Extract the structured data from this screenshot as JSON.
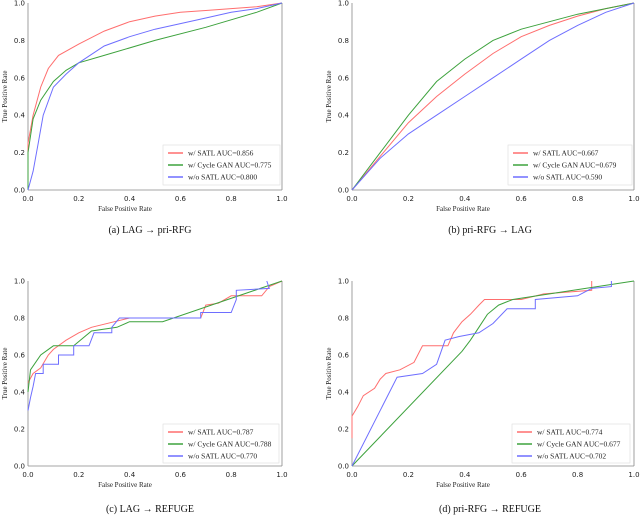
{
  "chart_data": [
    {
      "type": "line",
      "caption": "(a) LAG → pri-RFG",
      "xlabel": "False Positive Rate",
      "ylabel": "True Positive Rate",
      "xlim": [
        0,
        1
      ],
      "ylim": [
        0,
        1
      ],
      "xticks": [
        "0.0",
        "0.2",
        "0.4",
        "0.6",
        "0.8",
        "1.0"
      ],
      "yticks": [
        "0.0",
        "0.2",
        "0.4",
        "0.6",
        "0.8",
        "1.0"
      ],
      "grid": false,
      "legend_position": "lower-right",
      "series": [
        {
          "name": "w/ SATL AUC=0.856",
          "color": "#ff6e6e",
          "x": [
            0,
            0,
            0.02,
            0.05,
            0.08,
            0.12,
            0.2,
            0.3,
            0.4,
            0.5,
            0.6,
            0.7,
            0.8,
            0.9,
            1
          ],
          "y": [
            0,
            0.25,
            0.4,
            0.55,
            0.65,
            0.72,
            0.78,
            0.85,
            0.9,
            0.93,
            0.95,
            0.96,
            0.97,
            0.98,
            1
          ]
        },
        {
          "name": "w/ Cycle GAN AUC=0.775",
          "color": "#3da23d",
          "x": [
            0,
            0,
            0.02,
            0.05,
            0.1,
            0.15,
            0.2,
            0.3,
            0.5,
            0.7,
            0.9,
            1
          ],
          "y": [
            0,
            0.2,
            0.38,
            0.48,
            0.58,
            0.64,
            0.68,
            0.72,
            0.8,
            0.87,
            0.95,
            1
          ]
        },
        {
          "name": "w/o SATL AUC=0.800",
          "color": "#6e6eff",
          "x": [
            0,
            0.02,
            0.04,
            0.06,
            0.1,
            0.15,
            0.2,
            0.3,
            0.4,
            0.5,
            0.6,
            0.7,
            0.8,
            0.9,
            1
          ],
          "y": [
            0,
            0.1,
            0.25,
            0.4,
            0.55,
            0.62,
            0.68,
            0.77,
            0.82,
            0.86,
            0.89,
            0.92,
            0.95,
            0.97,
            1
          ]
        }
      ]
    },
    {
      "type": "line",
      "caption": "(b) pri-RFG → LAG",
      "xlabel": "False Positive Rate",
      "ylabel": "True Positive Rate",
      "xlim": [
        0,
        1
      ],
      "ylim": [
        0,
        1
      ],
      "xticks": [
        "0.0",
        "0.2",
        "0.4",
        "0.6",
        "0.8",
        "1.0"
      ],
      "yticks": [
        "0.0",
        "0.2",
        "0.4",
        "0.6",
        "0.8",
        "1.0"
      ],
      "grid": false,
      "legend_position": "lower-right",
      "series": [
        {
          "name": "w/ SATL AUC=0.667",
          "color": "#ff6e6e",
          "x": [
            0,
            0.1,
            0.2,
            0.3,
            0.4,
            0.5,
            0.6,
            0.7,
            0.8,
            0.9,
            1
          ],
          "y": [
            0,
            0.18,
            0.36,
            0.5,
            0.62,
            0.73,
            0.82,
            0.88,
            0.93,
            0.97,
            1
          ]
        },
        {
          "name": "w/ Cycle GAN AUC=0.679",
          "color": "#3da23d",
          "x": [
            0,
            0.1,
            0.2,
            0.3,
            0.4,
            0.5,
            0.6,
            0.7,
            0.8,
            0.9,
            1
          ],
          "y": [
            0,
            0.2,
            0.4,
            0.58,
            0.7,
            0.8,
            0.86,
            0.9,
            0.94,
            0.97,
            1
          ]
        },
        {
          "name": "w/o SATL AUC=0.590",
          "color": "#6e6eff",
          "x": [
            0,
            0.1,
            0.2,
            0.3,
            0.4,
            0.5,
            0.6,
            0.7,
            0.8,
            0.9,
            1
          ],
          "y": [
            0,
            0.17,
            0.3,
            0.4,
            0.5,
            0.6,
            0.7,
            0.8,
            0.88,
            0.95,
            1
          ]
        }
      ]
    },
    {
      "type": "line",
      "caption": "(c) LAG → REFUGE",
      "xlabel": "False Positive Rate",
      "ylabel": "True Positive Rate",
      "xlim": [
        0,
        1
      ],
      "ylim": [
        0,
        1
      ],
      "xticks": [
        "0.0",
        "0.2",
        "0.4",
        "0.6",
        "0.8",
        "1.0"
      ],
      "yticks": [
        "0.0",
        "0.2",
        "0.4",
        "0.6",
        "0.8",
        "1.0"
      ],
      "grid": false,
      "legend_position": "lower-right",
      "series": [
        {
          "name": "w/ SATL AUC=0.787",
          "color": "#ff6e6e",
          "x": [
            0,
            0.02,
            0.05,
            0.08,
            0.1,
            0.15,
            0.2,
            0.25,
            0.4,
            0.68,
            0.7,
            0.75,
            0.8,
            0.92,
            0.95,
            1
          ],
          "y": [
            0.45,
            0.5,
            0.53,
            0.6,
            0.63,
            0.68,
            0.72,
            0.75,
            0.8,
            0.8,
            0.87,
            0.88,
            0.92,
            0.92,
            0.97,
            1
          ]
        },
        {
          "name": "w/ Cycle GAN AUC=0.788",
          "color": "#3da23d",
          "x": [
            0,
            0.01,
            0.05,
            0.1,
            0.18,
            0.25,
            0.35,
            0.4,
            0.53,
            1
          ],
          "y": [
            0.4,
            0.52,
            0.6,
            0.65,
            0.65,
            0.73,
            0.75,
            0.78,
            0.78,
            1
          ]
        },
        {
          "name": "w/o SATL AUC=0.770",
          "color": "#6e6eff",
          "x": [
            0,
            0.01,
            0.02,
            0.03,
            0.06,
            0.06,
            0.12,
            0.12,
            0.18,
            0.18,
            0.24,
            0.26,
            0.33,
            0.33,
            0.36,
            0.68,
            0.68,
            0.8,
            0.82,
            0.82,
            0.95,
            0.94
          ],
          "y": [
            0.3,
            0.37,
            0.43,
            0.5,
            0.5,
            0.55,
            0.55,
            0.6,
            0.6,
            0.65,
            0.65,
            0.72,
            0.72,
            0.75,
            0.8,
            0.8,
            0.83,
            0.83,
            0.9,
            0.95,
            0.96,
            1
          ]
        }
      ]
    },
    {
      "type": "line",
      "caption": "(d) pri-RFG → REFUGE",
      "xlabel": "False Positive Rate",
      "ylabel": "True Positive Rate",
      "xlim": [
        0,
        1
      ],
      "ylim": [
        0,
        1
      ],
      "xticks": [
        "0.0",
        "0.2",
        "0.4",
        "0.6",
        "0.8",
        "1.0"
      ],
      "yticks": [
        "0.0",
        "0.2",
        "0.4",
        "0.6",
        "0.8",
        "1.0"
      ],
      "grid": false,
      "legend_position": "lower-right",
      "series": [
        {
          "name": "w/ SATL AUC=0.774",
          "color": "#ff6e6e",
          "x": [
            0,
            0,
            0.02,
            0.04,
            0.08,
            0.1,
            0.12,
            0.17,
            0.22,
            0.25,
            0.34,
            0.36,
            0.39,
            0.42,
            0.45,
            0.47,
            0.6,
            0.68,
            0.85,
            0.85
          ],
          "y": [
            0.15,
            0.27,
            0.32,
            0.38,
            0.42,
            0.47,
            0.5,
            0.52,
            0.56,
            0.65,
            0.65,
            0.72,
            0.78,
            0.82,
            0.87,
            0.9,
            0.9,
            0.93,
            0.95,
            1
          ]
        },
        {
          "name": "w/ Cycle GAN AUC=0.677",
          "color": "#3da23d",
          "x": [
            0,
            0.39,
            0.42,
            0.45,
            0.48,
            0.52,
            0.57,
            1
          ],
          "y": [
            0,
            0.62,
            0.68,
            0.75,
            0.82,
            0.87,
            0.9,
            1
          ]
        },
        {
          "name": "w/o SATL AUC=0.702",
          "color": "#6e6eff",
          "x": [
            0,
            0.16,
            0.25,
            0.3,
            0.33,
            0.38,
            0.45,
            0.5,
            0.55,
            0.65,
            0.65,
            0.8,
            0.85,
            0.92,
            0.92
          ],
          "y": [
            0,
            0.48,
            0.5,
            0.55,
            0.68,
            0.7,
            0.72,
            0.77,
            0.85,
            0.85,
            0.9,
            0.92,
            0.96,
            0.97,
            1
          ]
        }
      ]
    }
  ]
}
